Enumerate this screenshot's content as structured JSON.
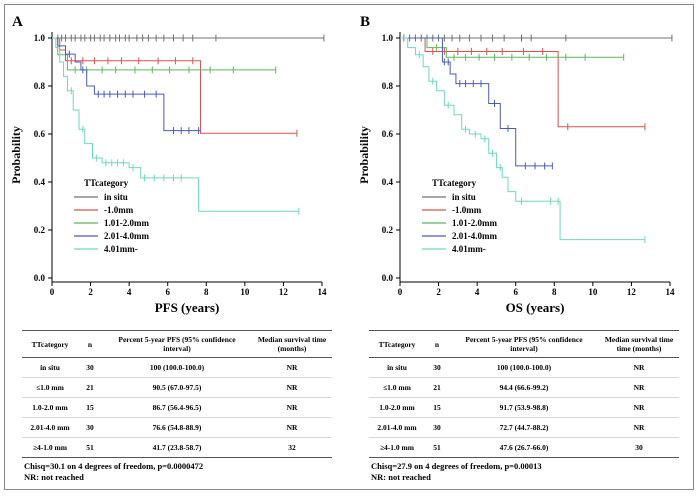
{
  "chart_data": [
    {
      "type": "line",
      "panel_label": "A",
      "xlabel": "PFS (years)",
      "ylabel": "Probability",
      "xlim": [
        0,
        14
      ],
      "ylim": [
        0.0,
        1.0
      ],
      "x_ticks": [
        "0",
        "2",
        "4",
        "6",
        "8",
        "10",
        "12",
        "14"
      ],
      "y_ticks": [
        "0.0",
        "0.2",
        "0.4",
        "0.6",
        "0.8",
        "1.0"
      ],
      "legend_title": "TTcategory",
      "legend_position": "lower-left",
      "series": [
        {
          "name": "in situ",
          "color": "#707070",
          "steps": [
            [
              0,
              1.0
            ],
            [
              14.1,
              1.0
            ]
          ],
          "censors": [
            0.3,
            0.5,
            0.7,
            1.0,
            1.2,
            1.5,
            1.7,
            2.0,
            2.2,
            2.5,
            2.7,
            3.0,
            3.3,
            3.5,
            3.8,
            4.0,
            4.4,
            4.7,
            5.0,
            5.4,
            5.8,
            6.3,
            6.8,
            7.3,
            8.5,
            14.1
          ]
        },
        {
          "name": "-1.0mm",
          "color": "#d9534f",
          "steps": [
            [
              0,
              1.0
            ],
            [
              0.4,
              0.95
            ],
            [
              0.7,
              0.905
            ],
            [
              7.7,
              0.905
            ],
            [
              7.7,
              0.603
            ],
            [
              12.7,
              0.603
            ]
          ],
          "censors": [
            1.0,
            1.6,
            2.2,
            2.9,
            3.6,
            4.5,
            5.5,
            6.4,
            7.3,
            12.7
          ]
        },
        {
          "name": "1.01-2.0mm",
          "color": "#5cb85c",
          "steps": [
            [
              0,
              1.0
            ],
            [
              0.3,
              0.93
            ],
            [
              0.8,
              0.867
            ],
            [
              11.6,
              0.867
            ]
          ],
          "censors": [
            1.2,
            1.8,
            2.6,
            3.3,
            4.3,
            5.2,
            6.1,
            7.1,
            8.2,
            9.4,
            11.6
          ]
        },
        {
          "name": "2.01-4.0mm",
          "color": "#4a5bbf",
          "steps": [
            [
              0,
              1.0
            ],
            [
              0.3,
              0.967
            ],
            [
              0.7,
              0.933
            ],
            [
              1.2,
              0.9
            ],
            [
              1.5,
              0.867
            ],
            [
              1.8,
              0.8
            ],
            [
              2.2,
              0.766
            ],
            [
              5.8,
              0.766
            ],
            [
              5.8,
              0.614
            ],
            [
              7.7,
              0.614
            ],
            [
              7.7,
              0.614
            ]
          ],
          "censors": [
            0.9,
            1.6,
            2.4,
            2.7,
            3.0,
            3.4,
            3.8,
            4.2,
            4.8,
            5.4,
            6.3,
            6.7,
            7.1,
            7.6
          ]
        },
        {
          "name": "4.01mm-",
          "color": "#6fd6c0",
          "steps": [
            [
              0,
              1.0
            ],
            [
              0.2,
              0.96
            ],
            [
              0.4,
              0.9
            ],
            [
              0.6,
              0.84
            ],
            [
              0.8,
              0.78
            ],
            [
              1.1,
              0.7
            ],
            [
              1.4,
              0.62
            ],
            [
              1.7,
              0.56
            ],
            [
              2.1,
              0.5
            ],
            [
              2.6,
              0.48
            ],
            [
              4.0,
              0.48
            ],
            [
              4.0,
              0.46
            ],
            [
              4.6,
              0.417
            ],
            [
              7.6,
              0.417
            ],
            [
              7.6,
              0.278
            ],
            [
              12.8,
              0.278
            ]
          ],
          "censors": [
            1.0,
            1.6,
            2.3,
            2.8,
            3.1,
            3.4,
            3.7,
            4.2,
            4.8,
            5.3,
            5.8,
            6.3,
            6.7,
            12.8
          ]
        }
      ]
    },
    {
      "type": "line",
      "panel_label": "B",
      "xlabel": "OS (years)",
      "ylabel": "Probability",
      "xlim": [
        0,
        14
      ],
      "ylim": [
        0.0,
        1.0
      ],
      "x_ticks": [
        "0",
        "2",
        "4",
        "6",
        "8",
        "10",
        "12",
        "14"
      ],
      "y_ticks": [
        "0.0",
        "0.2",
        "0.4",
        "0.6",
        "0.8",
        "1.0"
      ],
      "legend_title": "TTcategory",
      "legend_position": "lower-left",
      "series": [
        {
          "name": "in situ",
          "color": "#707070",
          "steps": [
            [
              0,
              1.0
            ],
            [
              14.1,
              1.0
            ]
          ],
          "censors": [
            0.2,
            0.5,
            0.8,
            1.1,
            1.4,
            1.7,
            2.0,
            2.3,
            2.7,
            3.1,
            3.6,
            4.2,
            4.8,
            5.4,
            6.3,
            6.8,
            8.6,
            14.1
          ]
        },
        {
          "name": "-1.0mm",
          "color": "#d9534f",
          "steps": [
            [
              0,
              1.0
            ],
            [
              1.3,
              0.944
            ],
            [
              8.2,
              0.944
            ],
            [
              8.2,
              0.63
            ],
            [
              12.7,
              0.63
            ]
          ],
          "censors": [
            1.7,
            2.3,
            3.0,
            3.7,
            4.5,
            5.3,
            6.4,
            7.4,
            8.7,
            12.7
          ]
        },
        {
          "name": "1.01-2.0mm",
          "color": "#5cb85c",
          "steps": [
            [
              0,
              1.0
            ],
            [
              1.4,
              0.96
            ],
            [
              2.4,
              0.92
            ],
            [
              11.6,
              0.92
            ]
          ],
          "censors": [
            1.9,
            2.8,
            3.4,
            4.1,
            4.9,
            5.8,
            6.7,
            7.6,
            8.6,
            9.6,
            11.6
          ]
        },
        {
          "name": "2.01-4.0mm",
          "color": "#4a5bbf",
          "steps": [
            [
              0,
              1.0
            ],
            [
              2.2,
              0.9
            ],
            [
              2.6,
              0.85
            ],
            [
              2.9,
              0.81
            ],
            [
              4.6,
              0.81
            ],
            [
              4.6,
              0.727
            ],
            [
              5.2,
              0.727
            ],
            [
              5.2,
              0.623
            ],
            [
              6.0,
              0.623
            ],
            [
              6.0,
              0.467
            ],
            [
              7.9,
              0.467
            ]
          ],
          "censors": [
            2.3,
            2.5,
            3.1,
            3.4,
            3.8,
            4.2,
            4.9,
            5.6,
            6.5,
            7.0,
            7.5,
            7.9
          ]
        },
        {
          "name": "4.01mm-",
          "color": "#6fd6c0",
          "steps": [
            [
              0,
              1.0
            ],
            [
              0.4,
              0.96
            ],
            [
              0.8,
              0.93
            ],
            [
              1.2,
              0.88
            ],
            [
              1.5,
              0.82
            ],
            [
              1.9,
              0.78
            ],
            [
              2.3,
              0.72
            ],
            [
              2.8,
              0.68
            ],
            [
              3.2,
              0.62
            ],
            [
              3.6,
              0.6
            ],
            [
              4.2,
              0.58
            ],
            [
              4.6,
              0.52
            ],
            [
              5.0,
              0.46
            ],
            [
              5.3,
              0.42
            ],
            [
              5.6,
              0.36
            ],
            [
              6.0,
              0.32
            ],
            [
              8.3,
              0.32
            ],
            [
              8.3,
              0.16
            ],
            [
              12.7,
              0.16
            ]
          ],
          "censors": [
            1.0,
            1.7,
            2.5,
            3.4,
            3.9,
            4.4,
            4.8,
            5.2,
            6.3,
            7.8,
            8.2,
            12.7
          ]
        }
      ]
    }
  ],
  "table_a": {
    "headers": [
      "TTcategory",
      "n",
      "Percent 5-year PFS (95% confidence interval)",
      "Median survival time (months)"
    ],
    "rows": [
      {
        "cat": "in situ",
        "n": "30",
        "pct": "100 (100.0-100.0)",
        "med": "NR"
      },
      {
        "cat": "≤1.0 mm",
        "n": "21",
        "pct": "90.5 (67.0-97.5)",
        "med": "NR"
      },
      {
        "cat": "1.0-2.0 mm",
        "n": "15",
        "pct": "86.7 (56.4-96.5)",
        "med": "NR"
      },
      {
        "cat": "2.01-4.0 mm",
        "n": "30",
        "pct": "76.6 (54.8-88.9)",
        "med": "NR"
      },
      {
        "cat": "≥4-1.0 mm",
        "n": "51",
        "pct": "41.7 (23.8-58.7)",
        "med": "32"
      }
    ],
    "note1": "Chisq=30.1 on 4 degrees of freedom, p=0.0000472",
    "note2": "NR: not reached"
  },
  "table_b": {
    "headers": [
      "TTcategory",
      "n",
      "Percent 5-year PFS (95% confidence interval)",
      "Median survival time time (months)"
    ],
    "rows": [
      {
        "cat": "in situ",
        "n": "30",
        "pct": "100 (100.0-100.0)",
        "med": "NR"
      },
      {
        "cat": "≤1.0 mm",
        "n": "21",
        "pct": "94.4 (66.6-99.2)",
        "med": "NR"
      },
      {
        "cat": "1.0-2.0 mm",
        "n": "15",
        "pct": "91.7 (53.9-98.8)",
        "med": "NR"
      },
      {
        "cat": "2.01-4.0 mm",
        "n": "30",
        "pct": "72.7 (44.7-88.2)",
        "med": "NR"
      },
      {
        "cat": "≥4-1.0 mm",
        "n": "51",
        "pct": "47.6 (26.7-66.0)",
        "med": "30"
      }
    ],
    "note1": "Chisq=27.9 on 4 degrees of freedom, p=0.00013",
    "note2": "NR: not reached"
  }
}
